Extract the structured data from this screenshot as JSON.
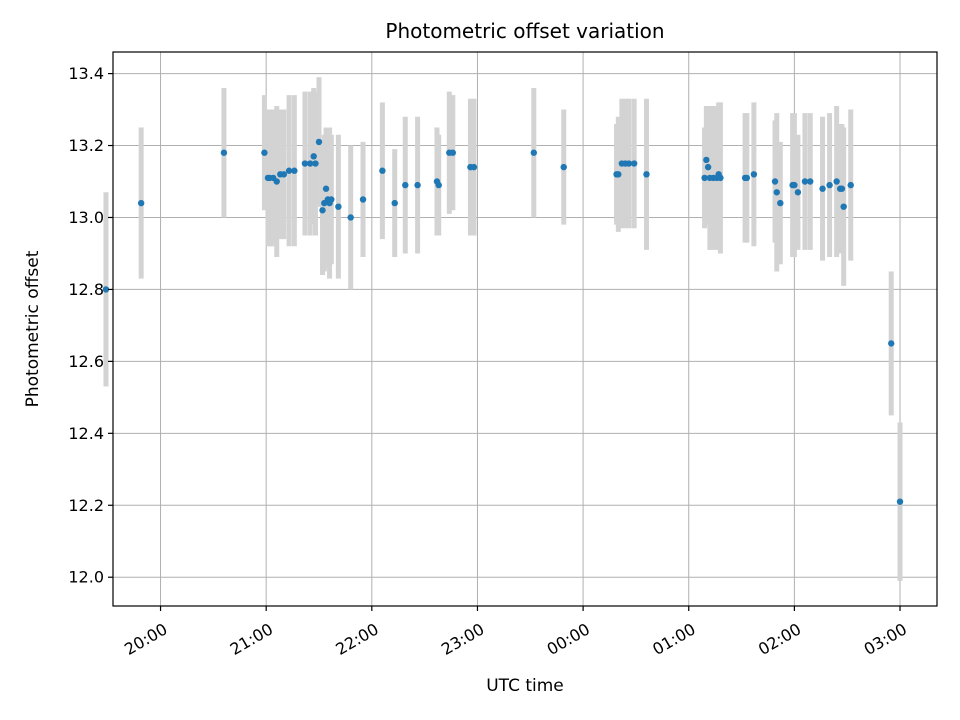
{
  "chart_data": {
    "type": "scatter",
    "title": "Photometric offset variation",
    "xlabel": "UTC time",
    "ylabel": "Photometric offset",
    "ylim": [
      11.92,
      13.46
    ],
    "xlim": [
      "19:33",
      "03:21"
    ],
    "grid": true,
    "x_ticks": [
      "20:00",
      "21:00",
      "22:00",
      "23:00",
      "00:00",
      "01:00",
      "02:00",
      "03:00"
    ],
    "y_ticks": [
      "12.0",
      "12.2",
      "12.4",
      "12.6",
      "12.8",
      "13.0",
      "13.2",
      "13.4"
    ],
    "colors": {
      "points": "#1f77b4",
      "errorbars": "#d3d3d3",
      "grid": "#b0b0b0"
    },
    "series": [
      {
        "x": [
          "19:29",
          "19:49",
          "20:36",
          "20:59",
          "21:01",
          "21:02",
          "21:04",
          "21:06",
          "21:08",
          "21:10",
          "21:13",
          "21:16",
          "21:22",
          "21:25",
          "21:27",
          "21:28",
          "21:30",
          "21:32",
          "21:33",
          "21:34",
          "21:35",
          "21:36",
          "21:37",
          "21:41",
          "21:48",
          "21:55",
          "22:06",
          "22:13",
          "22:19",
          "22:26",
          "22:37",
          "22:38",
          "22:44",
          "22:46",
          "22:56",
          "22:58",
          "23:32",
          "23:49",
          "00:19",
          "00:20",
          "00:22",
          "00:24",
          "00:26",
          "00:29",
          "00:36",
          "01:09",
          "01:10",
          "01:11",
          "01:12",
          "01:14",
          "01:16",
          "01:17",
          "01:18",
          "01:32",
          "01:33",
          "01:37",
          "01:49",
          "01:50",
          "01:52",
          "01:59",
          "02:00",
          "02:02",
          "02:06",
          "02:09",
          "02:16",
          "02:20",
          "02:24",
          "02:26",
          "02:27",
          "02:28",
          "02:32",
          "02:55",
          "03:00"
        ],
        "y": [
          12.8,
          13.04,
          13.18,
          13.18,
          13.11,
          13.11,
          13.11,
          13.1,
          13.12,
          13.12,
          13.13,
          13.13,
          13.15,
          13.15,
          13.17,
          13.15,
          13.21,
          13.02,
          13.04,
          13.08,
          13.05,
          13.04,
          13.05,
          13.03,
          13.0,
          13.05,
          13.13,
          13.04,
          13.09,
          13.09,
          13.1,
          13.09,
          13.18,
          13.18,
          13.14,
          13.14,
          13.18,
          13.14,
          13.12,
          13.12,
          13.15,
          13.15,
          13.15,
          13.15,
          13.12,
          13.11,
          13.16,
          13.14,
          13.11,
          13.11,
          13.11,
          13.12,
          13.11,
          13.11,
          13.11,
          13.12,
          13.1,
          13.07,
          13.04,
          13.09,
          13.09,
          13.07,
          13.1,
          13.1,
          13.08,
          13.09,
          13.1,
          13.08,
          13.08,
          13.03,
          13.09,
          12.65,
          12.21
        ],
        "yerr": [
          0.27,
          0.21,
          0.18,
          0.16,
          0.19,
          0.19,
          0.19,
          0.21,
          0.18,
          0.18,
          0.21,
          0.21,
          0.2,
          0.2,
          0.19,
          0.2,
          0.18,
          0.18,
          0.19,
          0.17,
          0.19,
          0.21,
          0.18,
          0.2,
          0.2,
          0.16,
          0.19,
          0.15,
          0.19,
          0.19,
          0.15,
          0.14,
          0.17,
          0.16,
          0.19,
          0.19,
          0.18,
          0.16,
          0.14,
          0.16,
          0.18,
          0.18,
          0.18,
          0.18,
          0.21,
          0.14,
          0.15,
          0.16,
          0.2,
          0.2,
          0.2,
          0.2,
          0.21,
          0.18,
          0.18,
          0.2,
          0.17,
          0.22,
          0.17,
          0.2,
          0.2,
          0.16,
          0.19,
          0.19,
          0.2,
          0.2,
          0.21,
          0.18,
          0.18,
          0.22,
          0.21,
          0.2,
          0.22
        ]
      }
    ]
  }
}
